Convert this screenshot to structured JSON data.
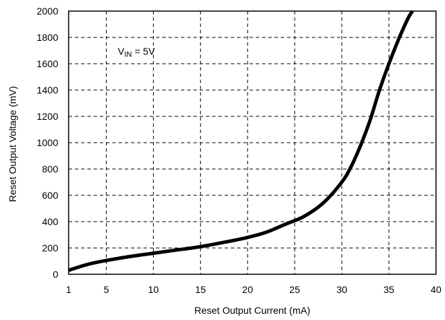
{
  "chart_data": {
    "type": "line",
    "xlabel": "Reset Output Current (mA)",
    "ylabel": "Reset Output Voltage (mV)",
    "xlim": [
      1,
      40
    ],
    "ylim": [
      0,
      2000
    ],
    "x_ticks": [
      1,
      5,
      10,
      15,
      20,
      25,
      30,
      35,
      40
    ],
    "y_ticks": [
      0,
      200,
      400,
      600,
      800,
      1000,
      1200,
      1400,
      1600,
      1800,
      2000
    ],
    "grid": true,
    "grid_style": "dashed",
    "annotation": {
      "main": "V",
      "subscript": "IN",
      "suffix": " = 5V"
    },
    "series": [
      {
        "color": "#000000",
        "points": [
          [
            1,
            30
          ],
          [
            3,
            75
          ],
          [
            5,
            105
          ],
          [
            8,
            140
          ],
          [
            10,
            160
          ],
          [
            12,
            180
          ],
          [
            15,
            210
          ],
          [
            18,
            250
          ],
          [
            20,
            280
          ],
          [
            22,
            320
          ],
          [
            24,
            380
          ],
          [
            26,
            440
          ],
          [
            28,
            540
          ],
          [
            30,
            700
          ],
          [
            31,
            820
          ],
          [
            32,
            980
          ],
          [
            33,
            1170
          ],
          [
            34,
            1400
          ],
          [
            35,
            1600
          ],
          [
            36,
            1780
          ],
          [
            37,
            1940
          ],
          [
            37.5,
            2000
          ]
        ]
      }
    ]
  }
}
